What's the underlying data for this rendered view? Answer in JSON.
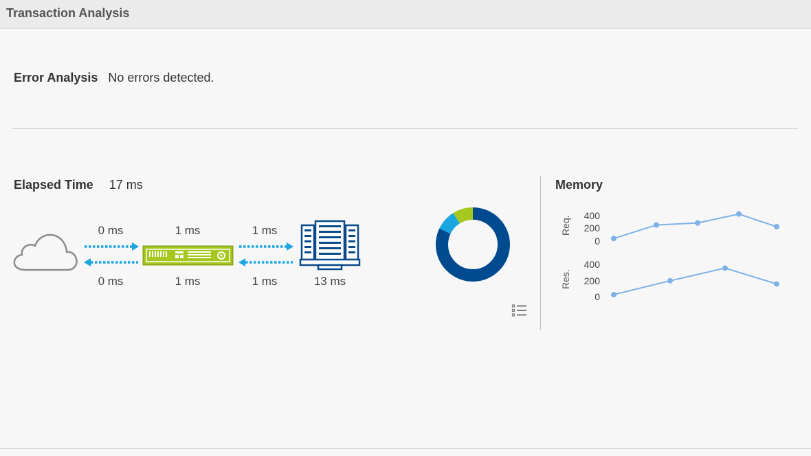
{
  "header": {
    "title": "Transaction Analysis"
  },
  "error_analysis": {
    "label": "Error Analysis",
    "value": "No errors detected."
  },
  "elapsed": {
    "label": "Elapsed Time",
    "value": "17 ms"
  },
  "flow": {
    "top": [
      "0 ms",
      "1 ms",
      "1 ms"
    ],
    "bottom": [
      "0 ms",
      "1 ms",
      "1 ms",
      "13 ms"
    ],
    "arrow_color": "#1ba6e0",
    "appliance_color": "#a6c81e",
    "server_color": "#0a4a8a",
    "cloud_color": "#8c8c8c"
  },
  "donut": {
    "segments": [
      {
        "value": 0.82,
        "color": "#004a8f"
      },
      {
        "value": 0.09,
        "color": "#1ba6e0"
      },
      {
        "value": 0.09,
        "color": "#a6c81e"
      }
    ]
  },
  "memory": {
    "title": "Memory",
    "req": {
      "label": "Req.",
      "ticks": [
        "400",
        "200",
        "0"
      ],
      "values": [
        20,
        255,
        290,
        445,
        225
      ]
    },
    "res": {
      "label": "Res.",
      "ticks": [
        "400",
        "200",
        "0"
      ],
      "values": [
        10,
        230,
        430,
        180
      ]
    },
    "line_color": "#7db1e8"
  }
}
